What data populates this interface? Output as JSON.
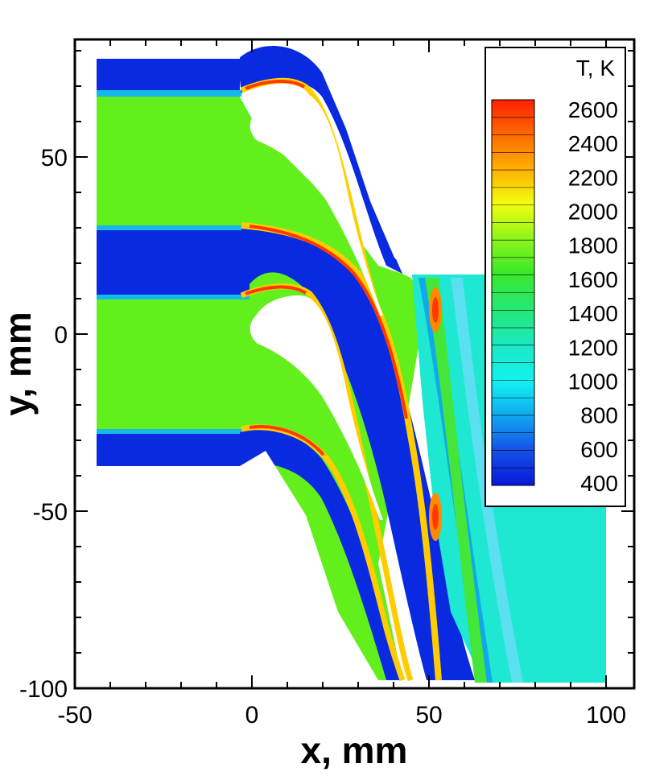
{
  "chart_data": {
    "type": "heatmap",
    "title": "",
    "xlabel": "x, mm",
    "ylabel": "y, mm",
    "xlim": [
      -50,
      108
    ],
    "ylim": [
      -100,
      83
    ],
    "x_ticks": [
      {
        "value": -50,
        "label": "-50"
      },
      {
        "value": 0,
        "label": "0"
      },
      {
        "value": 50,
        "label": "50"
      },
      {
        "value": 100,
        "label": "100"
      }
    ],
    "y_ticks": [
      {
        "value": -100,
        "label": "-100"
      },
      {
        "value": -50,
        "label": "-50"
      },
      {
        "value": 0,
        "label": "0"
      },
      {
        "value": 50,
        "label": "50"
      }
    ],
    "grid": false,
    "legend": {
      "title": "T, K",
      "position": "top-right",
      "levels": [
        {
          "value": 2600,
          "label": "2600",
          "color": "#ff2a00"
        },
        {
          "value": 2400,
          "label": "2400",
          "color": "#ff8a00"
        },
        {
          "value": 2200,
          "label": "2200",
          "color": "#ffd000"
        },
        {
          "value": 2000,
          "label": "2000",
          "color": "#d8ff1a"
        },
        {
          "value": 1800,
          "label": "1800",
          "color": "#66f21a"
        },
        {
          "value": 1600,
          "label": "1600",
          "color": "#2ee82e"
        },
        {
          "value": 1400,
          "label": "1400",
          "color": "#24e870"
        },
        {
          "value": 1200,
          "label": "1200",
          "color": "#20e8b8"
        },
        {
          "value": 1000,
          "label": "1000",
          "color": "#14f2ee"
        },
        {
          "value": 800,
          "label": "800",
          "color": "#10b8f0"
        },
        {
          "value": 600,
          "label": "600",
          "color": "#1456e8"
        },
        {
          "value": 400,
          "label": "400",
          "color": "#0820e0"
        }
      ]
    }
  },
  "colors": {
    "hot_gas": "#66f21a",
    "cold": "#0a28e6",
    "wake": "#1ee8d0",
    "peak": "#ff3a00"
  }
}
